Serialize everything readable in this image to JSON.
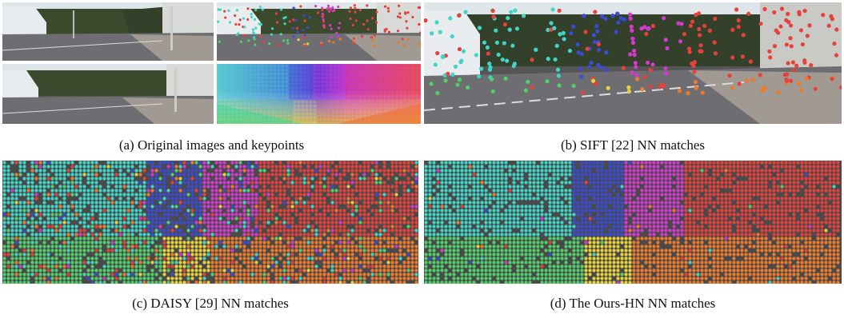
{
  "captions": {
    "a": "(a) Original images and keypoints",
    "b": "(b) SIFT [22] NN matches",
    "c": "(c) DAISY [29] NN matches",
    "d": "(d) The Ours-HN NN matches"
  },
  "colors": {
    "sky": "#cfe0ea",
    "trees": "#2d3a22",
    "road": "#6b6b70",
    "sidewalk": "#9a9188",
    "flow_cyan": "#3fd6c8",
    "flow_blue": "#3a4bd8",
    "flow_magenta": "#d43ad0",
    "flow_red": "#e8403a",
    "flow_orange": "#ef7a2a",
    "flow_green": "#4fd06a",
    "flow_yellow": "#e8d23a"
  }
}
